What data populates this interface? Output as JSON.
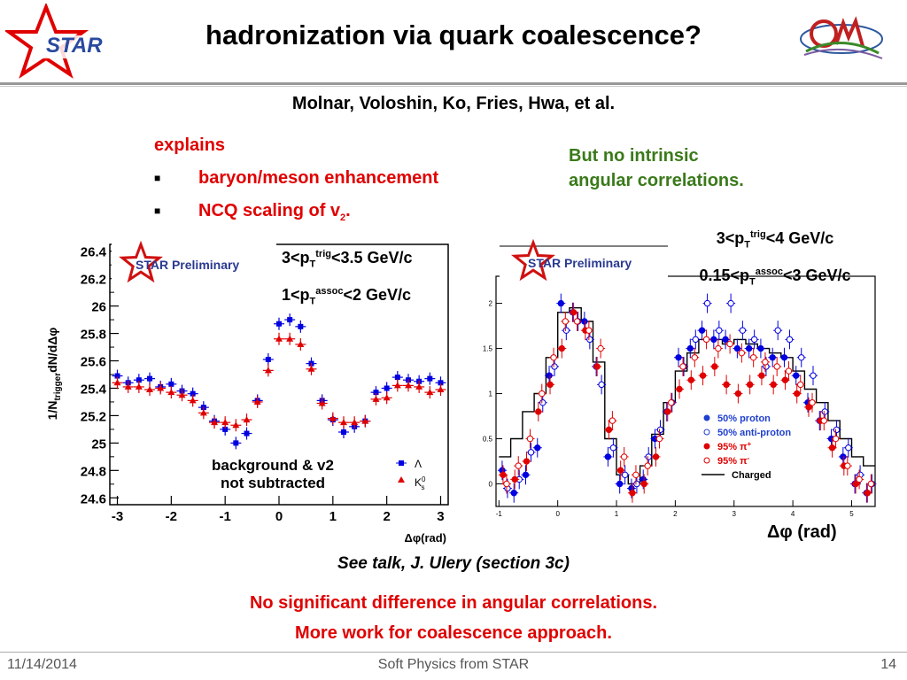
{
  "slide": {
    "title": "hadronization via quark coalescence?",
    "authors": "Molnar, Voloshin, Ko, Fries, Hwa, et al.",
    "logo_left": "STAR",
    "explains_heading": "explains",
    "bullets": [
      "baryon/meson enhancement",
      "NCQ scaling of v"
    ],
    "bullet_sub": "2",
    "bullet_end": ".",
    "green_note_line1": "But no intrinsic",
    "green_note_line2": "angular correlations.",
    "see_talk": "See talk, J. Ulery (section 3c)",
    "conclusion_line1": "No significant difference in angular correlations.",
    "conclusion_line2": "More work for coalescence approach.",
    "footer_date": "11/14/2014",
    "footer_center": "Soft Physics from STAR",
    "footer_page": "14",
    "colors": {
      "accent_red": "#e00000",
      "green_text": "#3a7a1a",
      "blue_marker": "#0000e0"
    }
  },
  "left_chart_text": {
    "cond1_pre": "3<p",
    "cond1_sub": "T",
    "cond1_sup": "trig",
    "cond1_post": "<3.5 GeV/c",
    "cond2_pre": "1<p",
    "cond2_sub": "T",
    "cond2_sup": "assoc",
    "cond2_post": "<2 GeV/c",
    "preliminary": "STAR Preliminary",
    "note1": "background & v2",
    "note2": "not subtracted",
    "xlabel": "Δφ(rad)",
    "ylabel": "1/N",
    "ylabel_sub": "trigger",
    "ylabel_post": "dN/dΔφ",
    "legend_lambda": "Λ",
    "legend_k0s": "K",
    "legend_k0s_sup": "0",
    "legend_k0s_sub": "s"
  },
  "right_chart_text": {
    "cond1_pre": "3<p",
    "cond1_sub": "T",
    "cond1_sup": "trig",
    "cond1_post": "<4 GeV/c",
    "cond2_pre": "0.15<p",
    "cond2_sub": "T",
    "cond2_sup": "assoc",
    "cond2_post": "<3 GeV/c",
    "preliminary": "STAR Preliminary",
    "xlabel": "Δφ (rad)",
    "legend": [
      "50% proton",
      "50% anti-proton",
      "95% π",
      "95% π",
      "Charged"
    ],
    "legend_sup": [
      "",
      "",
      "+",
      "-",
      ""
    ]
  },
  "chart_data": [
    {
      "type": "scatter",
      "title": "",
      "xlabel": "Δφ(rad)",
      "ylabel": "1/N trigger dN/dΔφ",
      "xlim": [
        -3.14,
        3.14
      ],
      "ylim": [
        24.55,
        26.45
      ],
      "xticks": [
        "-3",
        "-2",
        "-1",
        "0",
        "1",
        "2",
        "3"
      ],
      "yticks": [
        "24.6",
        "24.8",
        "25",
        "25.2",
        "25.4",
        "25.6",
        "25.8",
        "26",
        "26.2",
        "26.4"
      ],
      "x": [
        -3.0,
        -2.8,
        -2.6,
        -2.4,
        -2.2,
        -2.0,
        -1.8,
        -1.6,
        -1.4,
        -1.2,
        -1.0,
        -0.8,
        -0.6,
        -0.4,
        -0.2,
        0.0,
        0.2,
        0.4,
        0.6,
        0.8,
        1.0,
        1.2,
        1.4,
        1.6,
        1.8,
        2.0,
        2.2,
        2.4,
        2.6,
        2.8,
        3.0
      ],
      "series": [
        {
          "name": "Λ",
          "values": [
            25.49,
            25.44,
            25.46,
            25.47,
            25.41,
            25.43,
            25.38,
            25.36,
            25.26,
            25.16,
            25.1,
            25.0,
            25.07,
            25.31,
            25.61,
            25.87,
            25.9,
            25.85,
            25.58,
            25.31,
            25.17,
            25.08,
            25.12,
            25.16,
            25.37,
            25.4,
            25.48,
            25.46,
            25.45,
            25.47,
            25.44
          ]
        },
        {
          "name": "K0s",
          "values": [
            25.44,
            25.41,
            25.41,
            25.39,
            25.4,
            25.37,
            25.35,
            25.31,
            25.22,
            25.15,
            25.15,
            25.13,
            25.17,
            25.3,
            25.53,
            25.76,
            25.76,
            25.72,
            25.54,
            25.29,
            25.18,
            25.15,
            25.15,
            25.16,
            25.32,
            25.33,
            25.42,
            25.42,
            25.41,
            25.37,
            25.39
          ]
        }
      ]
    },
    {
      "type": "scatter",
      "title": "",
      "xlabel": "Δφ (rad)",
      "xlim": [
        -1.05,
        5.4
      ],
      "ylim": [
        -0.25,
        2.3
      ],
      "xticks": [
        "-1",
        "0",
        "1",
        "2",
        "3",
        "4",
        "5"
      ],
      "yticks": [
        "0",
        "0.5",
        "1",
        "1.5",
        "2"
      ],
      "x": [
        -0.9,
        -0.7,
        -0.5,
        -0.3,
        -0.1,
        0.1,
        0.3,
        0.5,
        0.7,
        0.9,
        1.1,
        1.3,
        1.5,
        1.7,
        1.9,
        2.1,
        2.3,
        2.5,
        2.7,
        2.9,
        3.1,
        3.3,
        3.5,
        3.7,
        3.9,
        4.1,
        4.3,
        4.5,
        4.7,
        4.9,
        5.1,
        5.3
      ],
      "series": [
        {
          "name": "50% proton",
          "values": [
            0.15,
            -0.1,
            0.1,
            0.4,
            1.2,
            2.0,
            1.9,
            1.8,
            1.3,
            0.3,
            0.0,
            -0.05,
            0.05,
            0.5,
            0.8,
            1.4,
            1.5,
            1.7,
            1.6,
            1.6,
            1.5,
            1.5,
            1.5,
            1.4,
            1.4,
            1.2,
            0.9,
            0.7,
            0.5,
            0.3,
            0.0,
            -0.1
          ]
        },
        {
          "name": "50% anti-proton",
          "values": [
            -0.05,
            0.05,
            0.35,
            0.9,
            1.3,
            1.7,
            1.8,
            1.6,
            1.1,
            0.4,
            0.1,
            0.0,
            0.3,
            0.6,
            0.9,
            1.3,
            1.6,
            2.0,
            1.7,
            2.0,
            1.7,
            1.6,
            1.3,
            1.7,
            1.6,
            1.4,
            1.2,
            0.8,
            0.6,
            0.4,
            0.1,
            0.0
          ]
        },
        {
          "name": "95% π+",
          "values": [
            0.1,
            0.05,
            0.25,
            0.8,
            1.1,
            1.5,
            1.9,
            1.7,
            1.3,
            0.6,
            0.15,
            -0.1,
            0.0,
            0.3,
            0.8,
            1.05,
            1.15,
            1.2,
            1.3,
            1.1,
            1.0,
            1.1,
            1.2,
            1.1,
            1.15,
            1.0,
            0.85,
            0.7,
            0.4,
            0.2,
            0.0,
            -0.1
          ]
        },
        {
          "name": "95% π-",
          "values": [
            0.0,
            0.2,
            0.5,
            1.0,
            1.4,
            1.8,
            1.8,
            1.7,
            1.5,
            0.7,
            0.3,
            0.1,
            0.2,
            0.5,
            0.9,
            1.3,
            1.4,
            1.6,
            1.5,
            1.55,
            1.45,
            1.4,
            1.35,
            1.3,
            1.25,
            1.1,
            0.9,
            0.7,
            0.5,
            0.2,
            0.05,
            0.0
          ]
        },
        {
          "name": "Charged",
          "values": [
            0.3,
            0.5,
            0.8,
            1.0,
            1.4,
            1.9,
            1.95,
            1.8,
            1.35,
            0.5,
            0.1,
            0.0,
            0.2,
            0.55,
            0.9,
            1.25,
            1.45,
            1.6,
            1.6,
            1.55,
            1.6,
            1.55,
            1.5,
            1.45,
            1.4,
            1.25,
            1.05,
            0.9,
            0.7,
            0.5,
            0.3,
            0.2
          ]
        }
      ]
    }
  ]
}
